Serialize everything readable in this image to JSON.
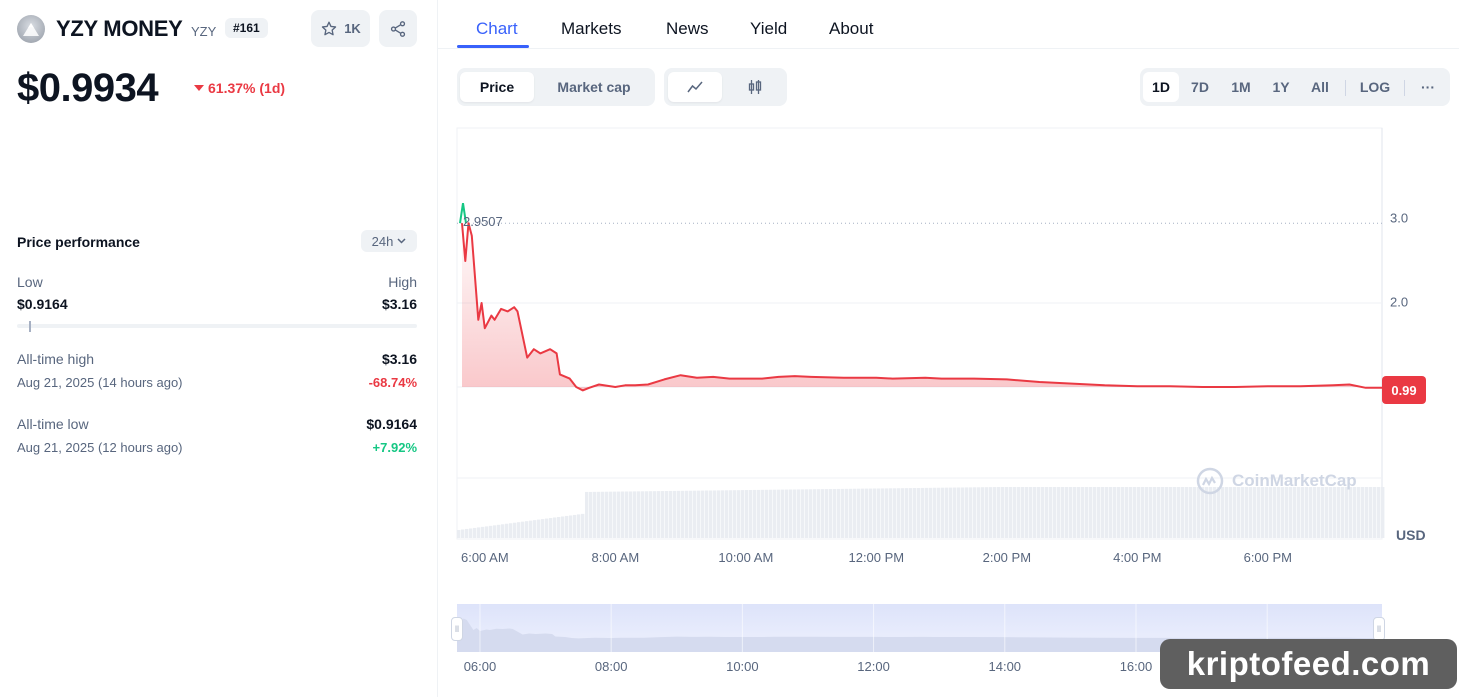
{
  "coin": {
    "name": "YZY MONEY",
    "symbol": "YZY",
    "rank": "#161",
    "watchlist_count": "1K",
    "price": "$0.9934",
    "change": "61.37% (1d)"
  },
  "performance": {
    "title": "Price performance",
    "period": "24h",
    "low_label": "Low",
    "high_label": "High",
    "low_value": "$0.9164",
    "high_value": "$3.16",
    "range_position": 0.03,
    "ath_label": "All-time high",
    "ath_value": "$3.16",
    "ath_date": "Aug 21, 2025 (14 hours ago)",
    "ath_change": "-68.74%",
    "atl_label": "All-time low",
    "atl_value": "$0.9164",
    "atl_date": "Aug 21, 2025 (12 hours ago)",
    "atl_change": "+7.92%"
  },
  "tabs": [
    "Chart",
    "Markets",
    "News",
    "Yield",
    "About"
  ],
  "toolbar": {
    "price_label": "Price",
    "mcap_label": "Market cap",
    "ranges": [
      "1D",
      "7D",
      "1M",
      "1Y",
      "All"
    ],
    "log_label": "LOG",
    "more_label": "···"
  },
  "colors": {
    "accent": "#3861fb",
    "negative": "#ea3943",
    "positive": "#16c784"
  },
  "chart_data": {
    "type": "line",
    "ylim": [
      1.0,
      3.0
    ],
    "yticks": [
      "3.0",
      "2.0"
    ],
    "xticks": [
      "6:00 AM",
      "8:00 AM",
      "10:00 AM",
      "12:00 PM",
      "2:00 PM",
      "4:00 PM",
      "6:00 PM"
    ],
    "unit": "USD",
    "peak_label": "2.9507",
    "last_price_label": "0.99",
    "watermark": "CoinMarketCap",
    "series": [
      {
        "x": [
          5.65,
          5.7,
          5.75,
          5.8,
          5.9,
          5.95,
          6.0,
          6.1,
          6.15,
          6.25,
          6.35,
          6.45,
          6.5,
          6.65,
          6.75,
          6.85,
          7.0,
          7.1,
          7.15,
          7.3,
          7.4,
          7.5,
          7.6,
          7.75,
          8.0,
          8.15,
          8.3,
          8.5,
          8.75,
          9.0,
          9.25,
          9.5,
          9.75,
          10.0,
          10.25,
          10.5,
          10.75,
          11.0,
          11.5,
          12.0,
          12.25,
          12.75,
          13.0,
          13.5,
          14.0,
          14.5,
          15.0,
          15.5,
          16.0,
          16.5,
          17.0,
          17.5,
          18.0,
          18.5,
          19.0,
          19.25,
          19.5,
          19.75
        ],
        "y": [
          2.95,
          2.5,
          2.95,
          2.8,
          1.8,
          2.0,
          1.7,
          1.85,
          1.8,
          1.93,
          1.9,
          1.95,
          1.9,
          1.35,
          1.45,
          1.4,
          1.45,
          1.4,
          1.15,
          1.1,
          1.0,
          0.96,
          0.99,
          1.03,
          1.0,
          1.02,
          1.02,
          1.03,
          1.09,
          1.14,
          1.11,
          1.12,
          1.1,
          1.1,
          1.1,
          1.12,
          1.13,
          1.12,
          1.11,
          1.11,
          1.1,
          1.11,
          1.1,
          1.1,
          1.09,
          1.06,
          1.04,
          1.02,
          1.01,
          1.01,
          1.0,
          1.0,
          1.01,
          1.01,
          1.02,
          1.03,
          0.99,
          0.99
        ]
      }
    ]
  },
  "navigator": {
    "xticks": [
      "06:00",
      "08:00",
      "10:00",
      "12:00",
      "14:00",
      "16:00"
    ]
  },
  "watermark_site": "kriptofeed.com"
}
